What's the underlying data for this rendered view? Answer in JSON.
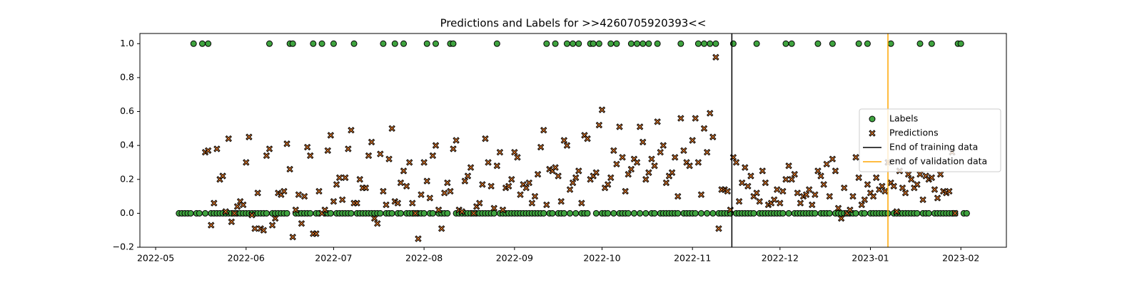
{
  "chart_data": {
    "type": "scatter",
    "title": "Predictions and Labels for >>4260705920393<<",
    "x": [
      8,
      9,
      10,
      11,
      12,
      13,
      14,
      15,
      16,
      17,
      18,
      19,
      20,
      21,
      22,
      23,
      24,
      25,
      26,
      27,
      28,
      29,
      30,
      31,
      32,
      33,
      34,
      35,
      36,
      37,
      38,
      39,
      40,
      41,
      42,
      43,
      44,
      45,
      46,
      47,
      48,
      49,
      50,
      51,
      52,
      53,
      54,
      55,
      56,
      57,
      58,
      59,
      60,
      61,
      62,
      63,
      64,
      65,
      66,
      67,
      68,
      69,
      70,
      71,
      72,
      73,
      74,
      75,
      76,
      77,
      78,
      79,
      80,
      81,
      82,
      83,
      84,
      85,
      86,
      87,
      88,
      89,
      90,
      91,
      92,
      93,
      94,
      95,
      96,
      97,
      98,
      99,
      100,
      101,
      102,
      103,
      104,
      105,
      106,
      107,
      108,
      109,
      110,
      111,
      112,
      113,
      114,
      115,
      116,
      117,
      118,
      119,
      120,
      121,
      122,
      123,
      124,
      125,
      126,
      127,
      128,
      129,
      130,
      131,
      132,
      133,
      134,
      135,
      136,
      137,
      138,
      139,
      140,
      141,
      142,
      143,
      144,
      145,
      146,
      147,
      148,
      149,
      150,
      151,
      152,
      153,
      154,
      155,
      156,
      157,
      158,
      159,
      160,
      161,
      162,
      163,
      164,
      165,
      166,
      167,
      168,
      169,
      170,
      171,
      172,
      173,
      174,
      175,
      176,
      177,
      178,
      179,
      180,
      181,
      182,
      183,
      184,
      185,
      186,
      187,
      188,
      189,
      190,
      191,
      192,
      193,
      194,
      195,
      196,
      197,
      198,
      199,
      200,
      201,
      202,
      203,
      204,
      205,
      206,
      207,
      208,
      209,
      210,
      211,
      212,
      213,
      214,
      215,
      216,
      217,
      218,
      219,
      220,
      221,
      222,
      223,
      224,
      225,
      226,
      227,
      228,
      229,
      230,
      231,
      232,
      233,
      234,
      235,
      236,
      237,
      238,
      239,
      240,
      241,
      242,
      243,
      244,
      245,
      246,
      247,
      248,
      249,
      250,
      251,
      252,
      253,
      254,
      255,
      256,
      257,
      258,
      259,
      260,
      261,
      262,
      263,
      264,
      265,
      266,
      267,
      268,
      269,
      270,
      271,
      272,
      273,
      274,
      275,
      276,
      277,
      278
    ],
    "series": [
      {
        "name": "Labels",
        "marker": "circle",
        "color": "#3fa33f",
        "values": [
          0,
          0,
          0,
          0,
          0,
          1,
          0,
          0,
          1,
          0,
          1,
          0,
          0,
          0,
          0,
          0,
          0,
          0,
          0,
          0,
          0,
          0,
          0,
          0,
          0,
          0,
          0,
          0,
          0,
          0,
          0,
          1,
          0,
          0,
          0,
          0,
          0,
          0,
          1,
          1,
          0,
          0,
          0,
          0,
          0,
          0,
          1,
          0,
          0,
          1,
          0,
          0,
          0,
          1,
          0,
          0,
          0,
          0,
          0,
          0,
          1,
          0,
          0,
          0,
          0,
          0,
          0,
          0,
          0,
          0,
          1,
          0,
          0,
          0,
          1,
          0,
          0,
          1,
          0,
          0,
          0,
          0,
          0,
          0,
          0,
          1,
          0,
          0,
          1,
          0,
          0,
          0,
          0,
          1,
          1,
          0,
          0,
          0,
          0,
          0,
          0,
          0,
          0,
          0,
          0,
          0,
          0,
          0,
          0,
          1,
          0,
          0,
          0,
          0,
          0,
          0,
          0,
          0,
          0,
          0,
          0,
          0,
          0,
          0,
          0,
          0,
          1,
          0,
          0,
          1,
          0,
          0,
          0,
          1,
          0,
          1,
          0,
          1,
          0,
          0,
          0,
          1,
          1,
          0,
          1,
          0,
          0,
          0,
          1,
          0,
          1,
          0,
          0,
          0,
          0,
          1,
          0,
          1,
          0,
          1,
          0,
          1,
          0,
          0,
          1,
          0,
          0,
          0,
          0,
          0,
          0,
          0,
          1,
          0,
          0,
          0,
          0,
          0,
          1,
          0,
          1,
          0,
          1,
          0,
          1,
          0,
          0,
          0,
          0,
          0,
          1,
          0,
          0,
          0,
          0,
          0,
          0,
          0,
          1,
          0,
          0,
          0,
          0,
          0,
          0,
          0,
          0,
          0,
          1,
          0,
          1,
          0,
          0,
          0,
          0,
          0,
          0,
          0,
          0,
          1,
          0,
          0,
          0,
          0,
          1,
          0,
          0,
          0,
          0,
          0,
          0,
          0,
          0,
          1,
          0,
          0,
          1,
          0,
          0,
          0,
          0,
          0,
          0,
          0,
          1,
          0,
          0,
          0,
          0,
          0,
          0,
          0,
          0,
          0,
          1,
          0,
          0,
          0,
          1,
          0,
          0,
          0,
          0,
          0,
          0,
          0,
          0,
          1,
          1,
          0,
          0
        ]
      },
      {
        "name": "Predictions",
        "marker": "x",
        "color": "#f07f2a",
        "values": [
          null,
          null,
          null,
          null,
          null,
          null,
          null,
          null,
          null,
          0.36,
          0.37,
          -0.07,
          0.06,
          0.38,
          0.2,
          0.22,
          0.01,
          0.44,
          -0.05,
          0.0,
          0.04,
          0.07,
          0.05,
          0.3,
          0.45,
          -0.01,
          -0.09,
          0.12,
          -0.09,
          -0.1,
          0.34,
          0.38,
          -0.07,
          -0.03,
          0.12,
          0.11,
          0.13,
          0.41,
          0.26,
          -0.14,
          0.02,
          0.11,
          -0.06,
          0.1,
          0.39,
          0.34,
          -0.12,
          -0.12,
          0.13,
          0.0,
          0.02,
          0.37,
          0.46,
          0.07,
          0.17,
          0.21,
          0.08,
          0.21,
          0.38,
          0.49,
          0.06,
          0.06,
          0.2,
          0.15,
          0.15,
          0.34,
          0.42,
          -0.03,
          -0.06,
          0.35,
          0.13,
          0.05,
          0.32,
          0.5,
          0.07,
          0.06,
          0.18,
          0.25,
          0.16,
          0.3,
          0.06,
          0.0,
          -0.15,
          0.11,
          0.3,
          0.19,
          0.09,
          0.34,
          0.4,
          0.02,
          -0.09,
          0.12,
          0.18,
          0.13,
          0.38,
          0.43,
          0.02,
          0.01,
          0.19,
          0.22,
          0.27,
          0.0,
          0.04,
          0.06,
          0.17,
          0.44,
          0.3,
          0.16,
          0.03,
          0.28,
          0.36,
          0.02,
          0.15,
          0.16,
          0.2,
          0.36,
          0.33,
          0.11,
          0.17,
          0.15,
          0.18,
          0.06,
          0.1,
          0.23,
          0.39,
          0.49,
          0.05,
          0.26,
          0.25,
          0.27,
          0.22,
          0.07,
          0.43,
          0.4,
          0.14,
          0.18,
          0.21,
          0.25,
          0.06,
          0.46,
          0.44,
          0.2,
          0.22,
          0.24,
          0.52,
          0.61,
          0.15,
          0.17,
          0.21,
          0.37,
          0.29,
          0.51,
          0.33,
          0.13,
          0.23,
          0.26,
          0.32,
          0.3,
          0.51,
          0.42,
          0.2,
          0.24,
          0.32,
          0.28,
          0.54,
          0.36,
          0.4,
          0.18,
          0.22,
          0.24,
          0.33,
          0.1,
          0.56,
          0.37,
          0.3,
          0.28,
          0.43,
          0.56,
          0.3,
          0.11,
          0.5,
          0.36,
          0.59,
          0.45,
          0.92,
          -0.09,
          0.14,
          0.14,
          0.13,
          0.02,
          0.33,
          0.3,
          0.07,
          0.18,
          0.27,
          0.16,
          0.22,
          0.1,
          0.12,
          0.07,
          0.25,
          0.18,
          0.05,
          0.06,
          0.08,
          0.14,
          0.06,
          0.13,
          0.2,
          0.28,
          0.2,
          0.23,
          0.12,
          0.06,
          0.1,
          0.11,
          0.14,
          0.05,
          0.11,
          0.25,
          0.22,
          0.17,
          0.29,
          0.1,
          0.32,
          0.25,
          0.03,
          -0.03,
          0.15,
          0.0,
          0.02,
          0.1,
          0.33,
          0.21,
          0.05,
          0.08,
          0.17,
          0.12,
          0.1,
          0.21,
          0.14,
          0.16,
          0.13,
          0.3,
          0.18,
          0.16,
          0.01,
          0.25,
          0.15,
          0.12,
          0.23,
          0.2,
          0.15,
          0.17,
          0.23,
          0.08,
          0.22,
          0.2,
          0.21,
          0.14,
          0.09,
          0.23,
          0.13,
          0.12,
          0.13,
          0.36,
          0.0,
          null,
          null,
          null,
          null
        ]
      }
    ],
    "vlines": [
      {
        "name": "End of training data",
        "x": 197.5,
        "color": "#000000"
      },
      {
        "name": "end of validation data",
        "x": 251,
        "color": "#ffa500"
      }
    ],
    "xlim": [
      -5.4,
      291.6
    ],
    "xticks": [
      {
        "value": 0,
        "label": "2022-05"
      },
      {
        "value": 31,
        "label": "2022-06"
      },
      {
        "value": 61,
        "label": "2022-07"
      },
      {
        "value": 92,
        "label": "2022-08"
      },
      {
        "value": 123,
        "label": "2022-09"
      },
      {
        "value": 153,
        "label": "2022-10"
      },
      {
        "value": 184,
        "label": "2022-11"
      },
      {
        "value": 214,
        "label": "2022-12"
      },
      {
        "value": 245,
        "label": "2023-01"
      },
      {
        "value": 276,
        "label": "2023-02"
      }
    ],
    "ylim": [
      -0.2,
      1.06
    ],
    "yticks": [
      {
        "value": -0.2,
        "label": "−0.2"
      },
      {
        "value": 0,
        "label": "0.0"
      },
      0.2,
      0.4,
      0.6,
      0.8,
      {
        "value": 1,
        "label": "1.0"
      }
    ],
    "legend": "center right"
  }
}
